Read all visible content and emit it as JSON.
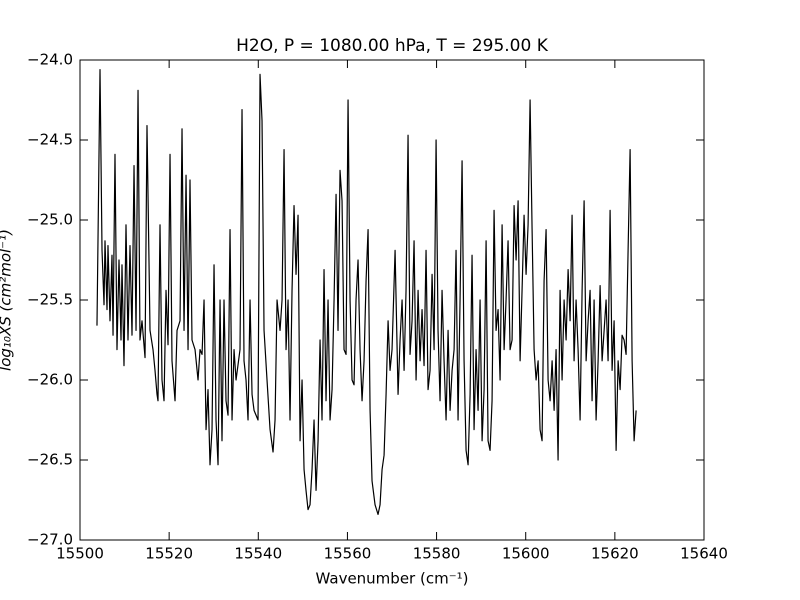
{
  "chart_data": {
    "type": "line",
    "title": "H2O, P = 1080.00 hPa, T = 295.00 K",
    "x_label": "Wavenumber (cm⁻¹)",
    "y_label": "log₁₀XS (cm²mol⁻¹)",
    "color": "#000000",
    "grid": false,
    "xlim": [
      15500,
      15640
    ],
    "xticks": [
      15500,
      15520,
      15540,
      15560,
      15580,
      15600,
      15620,
      15640
    ],
    "ylim": [
      -27,
      -24
    ],
    "yticks": [
      {
        "value": -27,
        "label": "−27.0"
      },
      {
        "value": -26.5,
        "label": "−26.5"
      },
      {
        "value": -26,
        "label": "−26.0"
      },
      {
        "value": -25.5,
        "label": "−25.5"
      },
      {
        "value": -25,
        "label": "−25.0"
      },
      {
        "value": -24.5,
        "label": "−24.5"
      },
      {
        "value": -24,
        "label": "−24.0"
      }
    ],
    "x": [
      15503.81,
      15504.49,
      15504.94,
      15505.39,
      15505.61,
      15506.06,
      15506.28,
      15506.73,
      15507.18,
      15507.41,
      15507.85,
      15508.3,
      15508.75,
      15509.2,
      15509.42,
      15509.87,
      15510.32,
      15510.77,
      15511.22,
      15511.67,
      15512.12,
      15512.57,
      15513.02,
      15513.46,
      15513.91,
      15514.59,
      15515.03,
      15515.71,
      15516.38,
      15516.83,
      15517.28,
      15517.5,
      15517.95,
      15518.4,
      15518.85,
      15519.3,
      15519.75,
      15520.2,
      15520.64,
      15521.32,
      15521.77,
      15522.44,
      15522.89,
      15523.34,
      15523.79,
      15524.24,
      15524.68,
      15525.13,
      15525.81,
      15526.48,
      15526.93,
      15527.38,
      15527.83,
      15528.28,
      15528.72,
      15529.17,
      15529.62,
      15530.07,
      15530.52,
      15530.97,
      15531.42,
      15531.86,
      15532.31,
      15532.76,
      15533.21,
      15533.66,
      15534.11,
      15534.56,
      15535.01,
      15535.9,
      15536.35,
      15536.8,
      15537.25,
      15537.7,
      15538.15,
      15538.6,
      15539.05,
      15539.94,
      15540.39,
      15540.84,
      15541.29,
      15541.96,
      15542.64,
      15543.31,
      15543.76,
      15544.21,
      15544.88,
      15545.33,
      15545.78,
      15546.23,
      15546.68,
      15547.12,
      15547.57,
      15548.02,
      15548.47,
      15548.92,
      15549.37,
      15549.82,
      15550.27,
      15550.71,
      15551.16,
      15551.61,
      15552.06,
      15552.51,
      15552.96,
      15553.41,
      15553.86,
      15554.3,
      15554.75,
      15555.2,
      15555.65,
      15556.1,
      15556.55,
      15557.0,
      15557.45,
      15557.89,
      15558.34,
      15558.79,
      15559.24,
      15559.69,
      15560.14,
      15560.59,
      15561.04,
      15561.48,
      15561.93,
      15562.38,
      15562.83,
      15563.28,
      15563.73,
      15564.18,
      15564.63,
      15565.08,
      15565.52,
      15566.2,
      15566.87,
      15567.32,
      15567.77,
      15568.22,
      15568.67,
      15569.12,
      15569.56,
      15570.01,
      15570.69,
      15571.36,
      15571.81,
      15572.26,
      15572.71,
      15573.15,
      15573.6,
      15574.05,
      15574.5,
      15574.95,
      15575.4,
      15575.85,
      15576.3,
      15576.74,
      15577.19,
      15577.64,
      15578.09,
      15578.54,
      15578.99,
      15579.44,
      15579.89,
      15580.33,
      15580.78,
      15581.23,
      15581.68,
      15582.13,
      15582.58,
      15583.03,
      15583.48,
      15583.93,
      15584.37,
      15584.82,
      15585.27,
      15585.72,
      15586.17,
      15586.62,
      15587.07,
      15587.52,
      15587.96,
      15588.41,
      15588.86,
      15589.31,
      15589.76,
      15590.21,
      15590.66,
      15591.11,
      15591.55,
      15592.0,
      15592.45,
      15592.9,
      15593.35,
      15593.8,
      15594.25,
      15594.7,
      15595.15,
      15595.59,
      15596.04,
      15596.49,
      15596.94,
      15597.39,
      15597.84,
      15598.29,
      15598.74,
      15599.18,
      15599.63,
      15600.08,
      15600.53,
      15600.98,
      15601.43,
      15601.88,
      15602.33,
      15602.78,
      15603.22,
      15603.67,
      15604.12,
      15604.57,
      15605.02,
      15605.47,
      15605.92,
      15606.37,
      15606.81,
      15607.26,
      15607.71,
      15608.16,
      15608.61,
      15609.06,
      15609.51,
      15609.96,
      15610.4,
      15610.85,
      15611.3,
      15611.75,
      15612.2,
      15612.65,
      15613.1,
      15613.55,
      15614.0,
      15614.44,
      15614.89,
      15615.34,
      15615.79,
      15616.24,
      15616.69,
      15617.14,
      15617.59,
      15618.03,
      15618.48,
      15618.93,
      15619.38,
      15619.83,
      15620.28,
      15620.73,
      15621.18,
      15621.62,
      15622.07,
      15622.52,
      15622.97,
      15623.42,
      15623.87,
      15624.32,
      15624.77
    ],
    "values": [
      -25.66,
      -24.06,
      -25.19,
      -25.53,
      -25.13,
      -25.56,
      -25.16,
      -25.63,
      -25.22,
      -25.72,
      -24.59,
      -25.81,
      -25.25,
      -25.75,
      -25.28,
      -25.91,
      -25.03,
      -25.75,
      -25.16,
      -25.72,
      -24.66,
      -25.69,
      -24.19,
      -25.75,
      -25.63,
      -25.86,
      -24.41,
      -25.69,
      -25.81,
      -25.94,
      -26.09,
      -26.13,
      -25.03,
      -26.0,
      -26.13,
      -25.44,
      -25.78,
      -24.59,
      -25.88,
      -26.13,
      -25.69,
      -25.63,
      -24.43,
      -25.69,
      -24.72,
      -25.81,
      -24.75,
      -25.75,
      -25.81,
      -26.0,
      -25.81,
      -25.84,
      -25.5,
      -26.31,
      -26.06,
      -26.53,
      -26.31,
      -25.28,
      -26.25,
      -26.53,
      -25.5,
      -26.38,
      -25.5,
      -26.13,
      -26.22,
      -25.06,
      -26.25,
      -25.81,
      -26.0,
      -25.81,
      -24.31,
      -25.88,
      -26.0,
      -26.25,
      -25.5,
      -26.09,
      -26.19,
      -26.25,
      -24.09,
      -24.38,
      -25.69,
      -26.0,
      -26.31,
      -26.45,
      -26.25,
      -25.5,
      -25.69,
      -25.5,
      -24.56,
      -25.81,
      -25.5,
      -26.25,
      -25.44,
      -24.91,
      -25.34,
      -24.97,
      -26.38,
      -26.0,
      -26.56,
      -26.69,
      -26.81,
      -26.78,
      -26.56,
      -26.25,
      -26.69,
      -26.38,
      -25.75,
      -26.25,
      -25.31,
      -26.13,
      -25.5,
      -26.25,
      -26.06,
      -25.5,
      -24.84,
      -25.69,
      -24.69,
      -24.88,
      -25.81,
      -25.84,
      -24.25,
      -25.5,
      -26.0,
      -26.03,
      -25.5,
      -25.25,
      -25.81,
      -26.13,
      -25.88,
      -25.38,
      -25.06,
      -26.19,
      -26.63,
      -26.78,
      -26.84,
      -26.78,
      -26.56,
      -26.47,
      -26.09,
      -25.63,
      -25.94,
      -25.81,
      -25.19,
      -26.09,
      -25.75,
      -25.5,
      -25.94,
      -25.44,
      -24.47,
      -25.84,
      -25.63,
      -25.13,
      -26.0,
      -25.44,
      -25.88,
      -25.56,
      -25.91,
      -25.19,
      -26.06,
      -25.94,
      -25.34,
      -25.81,
      -24.5,
      -25.69,
      -26.13,
      -25.44,
      -25.88,
      -26.25,
      -25.69,
      -26.19,
      -25.94,
      -25.81,
      -25.19,
      -26.25,
      -25.5,
      -24.63,
      -25.88,
      -26.44,
      -26.53,
      -26.09,
      -25.22,
      -26.31,
      -25.81,
      -26.19,
      -25.5,
      -26.38,
      -26.06,
      -25.13,
      -26.38,
      -26.44,
      -26.13,
      -24.94,
      -25.69,
      -25.56,
      -26.0,
      -25.03,
      -25.81,
      -25.5,
      -25.13,
      -25.81,
      -25.75,
      -24.91,
      -25.25,
      -24.88,
      -25.88,
      -25.44,
      -24.97,
      -25.34,
      -25.03,
      -24.25,
      -25.06,
      -25.81,
      -26.0,
      -25.88,
      -26.31,
      -26.38,
      -25.38,
      -25.06,
      -26.0,
      -26.13,
      -25.88,
      -26.19,
      -25.81,
      -26.5,
      -25.44,
      -26.0,
      -25.5,
      -25.75,
      -25.31,
      -25.63,
      -24.97,
      -25.88,
      -25.5,
      -25.81,
      -26.25,
      -25.44,
      -24.88,
      -25.88,
      -25.63,
      -25.44,
      -26.13,
      -25.5,
      -26.25,
      -25.88,
      -25.41,
      -25.88,
      -25.69,
      -25.5,
      -25.88,
      -24.94,
      -25.94,
      -25.63,
      -26.44,
      -25.88,
      -26.06,
      -25.72,
      -25.75,
      -25.84,
      -25.19,
      -24.56,
      -25.88,
      -26.38,
      -26.19
    ]
  }
}
